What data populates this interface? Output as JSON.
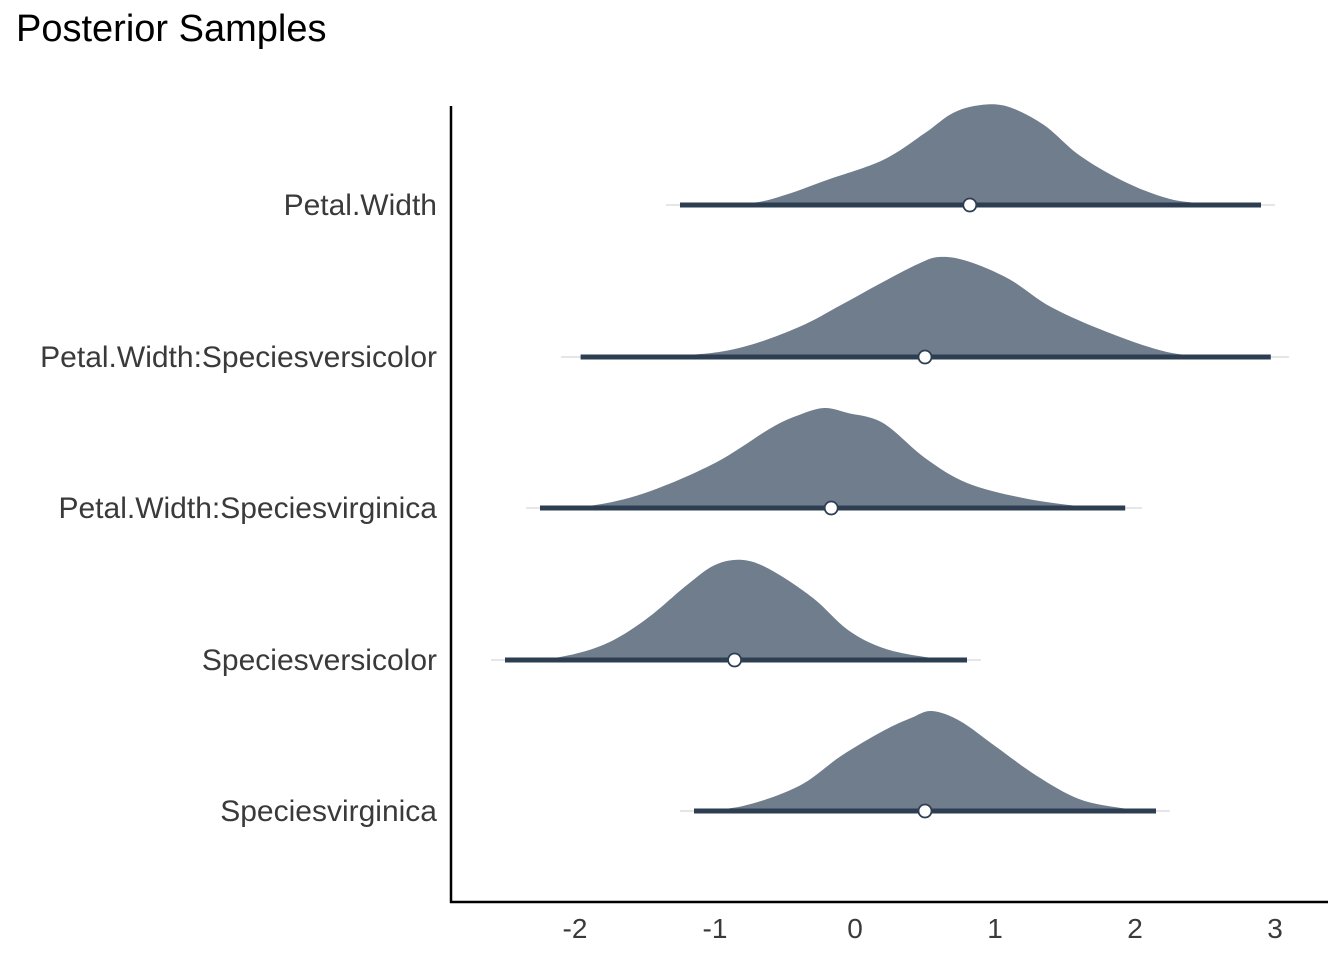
{
  "chart_data": {
    "type": "density",
    "title": "Posterior Samples",
    "xlabel": "",
    "ylabel": "",
    "xlim": [
      -2.9,
      3.4
    ],
    "x_ticks": [
      -2,
      -1,
      0,
      1,
      2,
      3
    ],
    "x_tick_labels": [
      "-2",
      "-1",
      "0",
      "1",
      "2",
      "3"
    ],
    "grid": false,
    "legend": "none",
    "colors": {
      "density": "#707d8c",
      "interval": "#2d3e52",
      "point_fill": "#ffffff",
      "axis": "#000000"
    },
    "series": [
      {
        "name": "Petal.Width",
        "median": 0.82,
        "interval_thin": [
          -1.35,
          3.0
        ],
        "interval_thick": [
          -1.25,
          2.9
        ],
        "density": [
          [
            -1.25,
            0.0
          ],
          [
            -0.75,
            0.02
          ],
          [
            -0.5,
            0.1
          ],
          [
            -0.2,
            0.25
          ],
          [
            0.2,
            0.45
          ],
          [
            0.5,
            0.72
          ],
          [
            0.7,
            0.92
          ],
          [
            0.9,
            1.0
          ],
          [
            1.1,
            0.98
          ],
          [
            1.35,
            0.8
          ],
          [
            1.6,
            0.5
          ],
          [
            1.9,
            0.25
          ],
          [
            2.2,
            0.08
          ],
          [
            2.45,
            0.02
          ],
          [
            2.9,
            0.0
          ]
        ]
      },
      {
        "name": "Petal.Width:Speciesversicolor",
        "median": 0.5,
        "interval_thin": [
          -2.1,
          3.1
        ],
        "interval_thick": [
          -1.96,
          2.97
        ],
        "density": [
          [
            -1.96,
            0.0
          ],
          [
            -1.2,
            0.02
          ],
          [
            -0.8,
            0.1
          ],
          [
            -0.4,
            0.3
          ],
          [
            -0.1,
            0.52
          ],
          [
            0.2,
            0.75
          ],
          [
            0.45,
            0.93
          ],
          [
            0.6,
            1.0
          ],
          [
            0.8,
            0.96
          ],
          [
            1.1,
            0.78
          ],
          [
            1.4,
            0.5
          ],
          [
            1.8,
            0.25
          ],
          [
            2.2,
            0.06
          ],
          [
            2.5,
            0.01
          ],
          [
            2.97,
            0.0
          ]
        ]
      },
      {
        "name": "Petal.Width:Speciesvirginica",
        "median": -0.17,
        "interval_thin": [
          -2.35,
          2.05
        ],
        "interval_thick": [
          -2.25,
          1.93
        ],
        "density": [
          [
            -2.25,
            0.0
          ],
          [
            -1.9,
            0.02
          ],
          [
            -1.5,
            0.15
          ],
          [
            -1.0,
            0.45
          ],
          [
            -0.6,
            0.8
          ],
          [
            -0.4,
            0.93
          ],
          [
            -0.22,
            1.0
          ],
          [
            -0.05,
            0.95
          ],
          [
            0.2,
            0.85
          ],
          [
            0.5,
            0.5
          ],
          [
            0.8,
            0.25
          ],
          [
            1.2,
            0.1
          ],
          [
            1.6,
            0.02
          ],
          [
            1.93,
            0.0
          ]
        ]
      },
      {
        "name": "Speciesversicolor",
        "median": -0.86,
        "interval_thin": [
          -2.6,
          0.9
        ],
        "interval_thick": [
          -2.5,
          0.8
        ],
        "density": [
          [
            -2.5,
            0.0
          ],
          [
            -2.15,
            0.02
          ],
          [
            -1.8,
            0.15
          ],
          [
            -1.5,
            0.4
          ],
          [
            -1.2,
            0.75
          ],
          [
            -1.0,
            0.95
          ],
          [
            -0.8,
            1.0
          ],
          [
            -0.6,
            0.9
          ],
          [
            -0.3,
            0.62
          ],
          [
            -0.05,
            0.3
          ],
          [
            0.2,
            0.12
          ],
          [
            0.5,
            0.03
          ],
          [
            0.8,
            0.0
          ]
        ]
      },
      {
        "name": "Speciesvirginica",
        "median": 0.5,
        "interval_thin": [
          -1.25,
          2.25
        ],
        "interval_thick": [
          -1.15,
          2.15
        ],
        "density": [
          [
            -1.15,
            0.0
          ],
          [
            -0.8,
            0.05
          ],
          [
            -0.4,
            0.25
          ],
          [
            -0.1,
            0.55
          ],
          [
            0.2,
            0.8
          ],
          [
            0.4,
            0.93
          ],
          [
            0.55,
            1.0
          ],
          [
            0.75,
            0.9
          ],
          [
            1.0,
            0.65
          ],
          [
            1.3,
            0.35
          ],
          [
            1.6,
            0.12
          ],
          [
            1.9,
            0.03
          ],
          [
            2.15,
            0.0
          ]
        ]
      }
    ]
  }
}
